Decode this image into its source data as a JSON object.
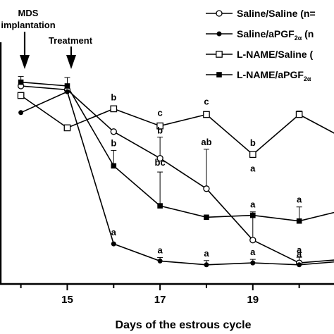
{
  "chart_data": {
    "type": "line",
    "xlabel": "Days of the estrous cycle",
    "ylabel": "",
    "x_ticks": [
      15,
      17,
      19
    ],
    "xlim": [
      13.55,
      20.75
    ],
    "grid": false,
    "legend_position": "top-right",
    "annotations": {
      "mds": "MDS",
      "implantation": "implantation",
      "treatment": "Treatment"
    },
    "series": [
      {
        "name": "Saline/Saline (n=",
        "marker": "open-circle",
        "x": [
          14,
          15,
          16,
          17,
          18,
          19,
          20,
          21
        ],
        "y": [
          100,
          98,
          76,
          62,
          46,
          19,
          7,
          9
        ],
        "sig": [
          "",
          "",
          "",
          "b",
          "ab",
          "a",
          "a",
          ""
        ]
      },
      {
        "name": "Saline/aPGF",
        "name_sub": "2α",
        "name_tail": " (n",
        "marker": "filled-circle",
        "x": [
          14,
          15,
          16,
          17,
          18,
          19,
          20,
          21
        ],
        "y": [
          86,
          97,
          17,
          8,
          6,
          7,
          6,
          8
        ],
        "sig": [
          "",
          "",
          "a",
          "a",
          "a",
          "a",
          "a",
          ""
        ]
      },
      {
        "name": "L-NAME/Saline (",
        "marker": "open-square",
        "x": [
          14,
          15,
          16,
          17,
          18,
          19,
          20,
          21
        ],
        "y": [
          95,
          78,
          88,
          79,
          85,
          64,
          85,
          72
        ],
        "sig": [
          "",
          "",
          "b",
          "c",
          "c",
          "b",
          "",
          ""
        ]
      },
      {
        "name": "L-NAME/aPGF",
        "name_sub": "2α",
        "name_tail": "",
        "marker": "filled-square",
        "x": [
          14,
          15,
          16,
          17,
          18,
          19,
          20,
          21
        ],
        "y": [
          102,
          100,
          58,
          37,
          31,
          32,
          29,
          35
        ],
        "sig": [
          "",
          "",
          "b",
          "bc",
          "",
          "a",
          "a",
          ""
        ]
      }
    ]
  }
}
